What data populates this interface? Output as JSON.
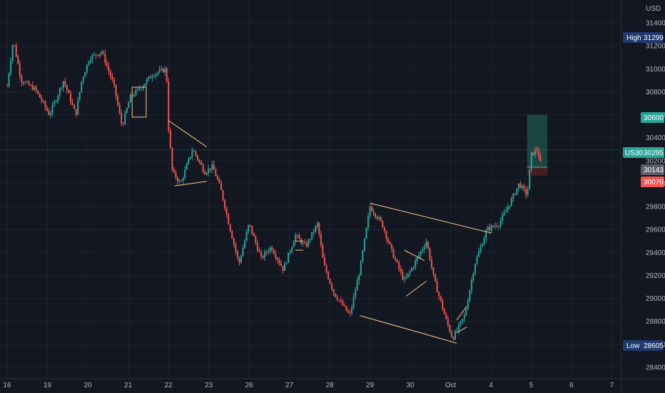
{
  "chart_data": {
    "type": "candlestick",
    "symbol": "US30",
    "currency": "USD",
    "ylim": [
      28300,
      31600
    ],
    "y_ticks": [
      28400,
      28600,
      28800,
      29000,
      29200,
      29400,
      29600,
      29800,
      30000,
      30200,
      30400,
      30600,
      30800,
      31000,
      31200,
      31400
    ],
    "x_ticks": [
      "16",
      "19",
      "20",
      "21",
      "22",
      "23",
      "26",
      "27",
      "28",
      "29",
      "30",
      "Oct",
      "4",
      "5",
      "6",
      "7"
    ],
    "price_path": [
      [
        0.0,
        30850
      ],
      [
        0.15,
        31250
      ],
      [
        0.35,
        30900
      ],
      [
        0.7,
        30820
      ],
      [
        1.05,
        30600
      ],
      [
        1.4,
        30900
      ],
      [
        1.7,
        30600
      ],
      [
        1.85,
        30900
      ],
      [
        2.05,
        31100
      ],
      [
        2.35,
        31150
      ],
      [
        2.65,
        30850
      ],
      [
        2.85,
        30500
      ],
      [
        3.05,
        30750
      ],
      [
        3.35,
        30850
      ],
      [
        3.6,
        30950
      ],
      [
        3.95,
        31000
      ],
      [
        4.0,
        30500
      ],
      [
        4.1,
        30100
      ],
      [
        4.3,
        30000
      ],
      [
        4.6,
        30300
      ],
      [
        4.9,
        30100
      ],
      [
        5.1,
        30150
      ],
      [
        5.3,
        29950
      ],
      [
        5.5,
        29650
      ],
      [
        5.75,
        29300
      ],
      [
        6.0,
        29650
      ],
      [
        6.3,
        29350
      ],
      [
        6.55,
        29450
      ],
      [
        6.85,
        29250
      ],
      [
        7.15,
        29550
      ],
      [
        7.4,
        29450
      ],
      [
        7.7,
        29650
      ],
      [
        7.85,
        29300
      ],
      [
        8.1,
        29050
      ],
      [
        8.5,
        28850
      ],
      [
        8.75,
        29250
      ],
      [
        9.0,
        29800
      ],
      [
        9.3,
        29650
      ],
      [
        9.55,
        29400
      ],
      [
        9.85,
        29150
      ],
      [
        10.1,
        29300
      ],
      [
        10.4,
        29500
      ],
      [
        10.6,
        29150
      ],
      [
        10.9,
        28800
      ],
      [
        11.05,
        28650
      ],
      [
        11.35,
        28850
      ],
      [
        11.6,
        29300
      ],
      [
        11.9,
        29600
      ],
      [
        12.2,
        29650
      ],
      [
        12.5,
        29850
      ],
      [
        12.7,
        30000
      ],
      [
        12.9,
        29900
      ],
      [
        13.0,
        30250
      ],
      [
        13.15,
        30300
      ],
      [
        13.25,
        30143
      ]
    ],
    "patterns": [
      [
        [
          3.1,
          30840
        ],
        [
          3.45,
          30840
        ],
        [
          3.45,
          30580
        ],
        [
          3.1,
          30580
        ],
        [
          3.1,
          30840
        ]
      ],
      [
        [
          4.0,
          30550
        ],
        [
          4.95,
          30320
        ]
      ],
      [
        [
          4.15,
          29980
        ],
        [
          4.95,
          30020
        ]
      ],
      [
        [
          7.15,
          29500
        ],
        [
          7.35,
          29500
        ]
      ],
      [
        [
          7.15,
          29420
        ],
        [
          7.35,
          29420
        ]
      ],
      [
        [
          9.0,
          29830
        ],
        [
          12.0,
          29570
        ]
      ],
      [
        [
          8.75,
          28850
        ],
        [
          11.15,
          28610
        ]
      ],
      [
        [
          9.85,
          29420
        ],
        [
          10.35,
          29330
        ]
      ],
      [
        [
          9.9,
          29020
        ],
        [
          10.4,
          29150
        ]
      ],
      [
        [
          11.15,
          28810
        ],
        [
          11.4,
          28930
        ]
      ],
      [
        [
          11.15,
          28700
        ],
        [
          11.4,
          28750
        ]
      ]
    ],
    "position": {
      "entry": 30143,
      "target": 30600,
      "stop": 30070
    },
    "labels": {
      "currency": "USD",
      "high_label": "High",
      "high_value": "31299",
      "low_label": "Low",
      "low_value": "28605",
      "symbol_label": "US30",
      "last_value": "30295",
      "entry_value": "30143",
      "target_value": "30600",
      "stop_value": "30070"
    },
    "values": {
      "high": 31299,
      "low": 28605,
      "last": 30295
    },
    "colors": {
      "background": "#131722",
      "grid": "#1e222d",
      "up": "#26a69a",
      "down": "#ef5350",
      "pattern": "#f7c680",
      "high_tag": "#1e3a6e",
      "symbol_tag": "#26a69a",
      "entry_tag": "#5d606b",
      "last_line": "#26a69a",
      "target_zone": "#1c4a47",
      "stop_zone": "#4a1f24"
    }
  }
}
